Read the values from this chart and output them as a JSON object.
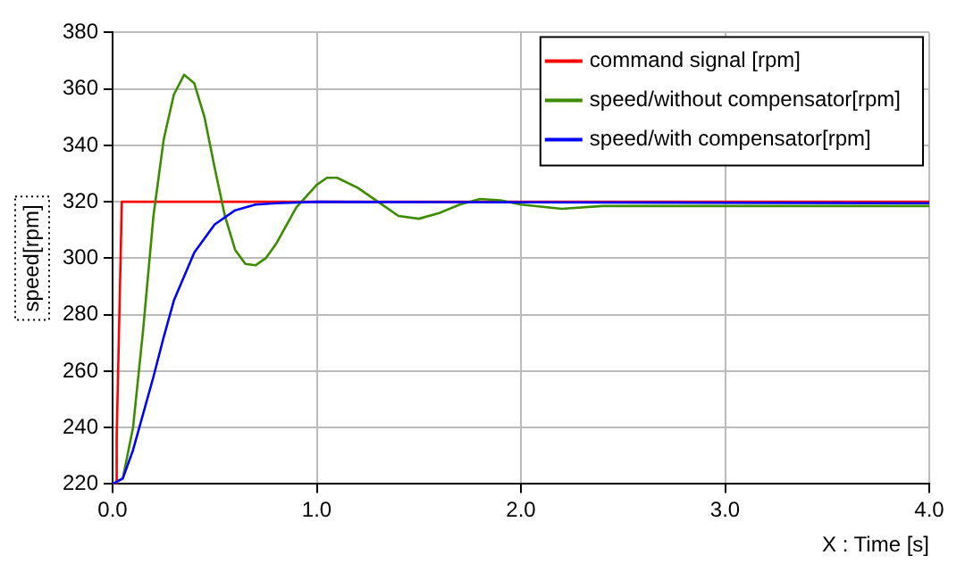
{
  "chart_data": {
    "type": "line",
    "xlabel": "X : Time [s]",
    "ylabel": "speed[rpm]",
    "xlim": [
      0,
      4
    ],
    "xticks": [
      {
        "value": 0,
        "label": "0.0"
      },
      {
        "value": 1,
        "label": "1.0"
      },
      {
        "value": 2,
        "label": "2.0"
      },
      {
        "value": 3,
        "label": "3.0"
      },
      {
        "value": 4,
        "label": "4.0"
      }
    ],
    "ylim": [
      220,
      380
    ],
    "yticks": [
      220,
      240,
      260,
      280,
      300,
      320,
      340,
      360,
      380
    ],
    "grid": true,
    "legend": "top right",
    "marker": "none",
    "line_style": "solid",
    "series": [
      {
        "name": "command signal [rpm]",
        "color": "#ff0000",
        "x": [
          0,
          0.02,
          0.02,
          0.03,
          0.04,
          0.045,
          4.0
        ],
        "values": [
          220,
          220,
          237,
          270,
          303,
          320,
          320
        ]
      },
      {
        "name": "speed/without compensator[rpm]",
        "color": "#3c8c00",
        "x": [
          0,
          0.05,
          0.1,
          0.15,
          0.2,
          0.25,
          0.3,
          0.35,
          0.4,
          0.45,
          0.5,
          0.55,
          0.6,
          0.65,
          0.7,
          0.75,
          0.8,
          0.9,
          1.0,
          1.05,
          1.1,
          1.2,
          1.3,
          1.4,
          1.5,
          1.6,
          1.7,
          1.8,
          1.9,
          2.0,
          2.2,
          2.4,
          4.0
        ],
        "values": [
          220,
          222,
          240,
          275,
          315,
          342,
          358,
          365,
          362,
          350,
          332,
          315,
          303,
          298,
          297.5,
          300,
          305,
          318,
          326,
          328.5,
          328.5,
          325,
          320,
          315,
          314,
          316,
          319,
          321,
          320.5,
          319,
          317.5,
          318.5,
          318.5
        ]
      },
      {
        "name": "speed/with compensator[rpm]",
        "color": "#0000ff",
        "x": [
          0,
          0.05,
          0.1,
          0.2,
          0.25,
          0.3,
          0.4,
          0.5,
          0.6,
          0.7,
          0.8,
          1.0,
          4.0
        ],
        "values": [
          220,
          222,
          232,
          258,
          272,
          285,
          302,
          312,
          317,
          319,
          319.5,
          320,
          319.5
        ]
      }
    ]
  }
}
